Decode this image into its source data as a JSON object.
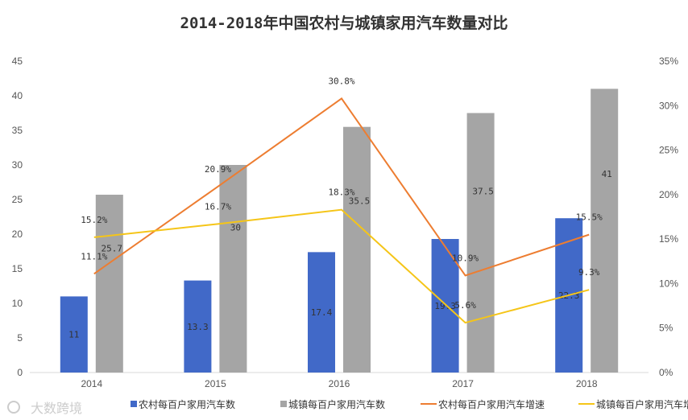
{
  "chart_data": {
    "type": "bar",
    "title": "2014-2018年中国农村与城镇家用汽车数量对比",
    "categories": [
      "2014",
      "2015",
      "2016",
      "2017",
      "2018"
    ],
    "left_axis": {
      "ylim": [
        0,
        45
      ],
      "ticks": [
        "0",
        "5",
        "10",
        "15",
        "20",
        "25",
        "30",
        "35",
        "40",
        "45"
      ]
    },
    "right_axis": {
      "ylim": [
        0,
        35
      ],
      "ticks": [
        "0%",
        "5%",
        "10%",
        "15%",
        "20%",
        "25%",
        "30%",
        "35%"
      ]
    },
    "grid": false,
    "legend_position": "bottom",
    "series": [
      {
        "name": "农村每百户家用汽车数",
        "kind": "bar",
        "axis": "left",
        "color": "#4169c8",
        "values": [
          11,
          13.3,
          17.4,
          19.3,
          22.3
        ],
        "labels": [
          "11",
          "13.3",
          "17.4",
          "19.3",
          "22.3"
        ]
      },
      {
        "name": "城镇每百户家用汽车数",
        "kind": "bar",
        "axis": "left",
        "color": "#a5a5a5",
        "values": [
          25.7,
          30,
          35.5,
          37.5,
          41
        ],
        "labels": [
          "25.7",
          "30",
          "35.5",
          "37.5",
          "41"
        ]
      },
      {
        "name": "农村每百户家用汽车增速",
        "kind": "line",
        "axis": "right",
        "color": "#ed7d31",
        "values": [
          11.1,
          20.9,
          30.8,
          10.9,
          15.5
        ],
        "labels": [
          "11.1%",
          "20.9%",
          "30.8%",
          "10.9%",
          "15.5%"
        ]
      },
      {
        "name": "城镇每百户家用汽车增速",
        "kind": "line",
        "axis": "right",
        "color": "#f5c518",
        "values": [
          15.2,
          16.7,
          18.3,
          5.6,
          9.3
        ],
        "labels": [
          "15.2%",
          "16.7%",
          "18.3%",
          "5.6%",
          "9.3%"
        ]
      }
    ]
  },
  "watermark": "大数跨境"
}
